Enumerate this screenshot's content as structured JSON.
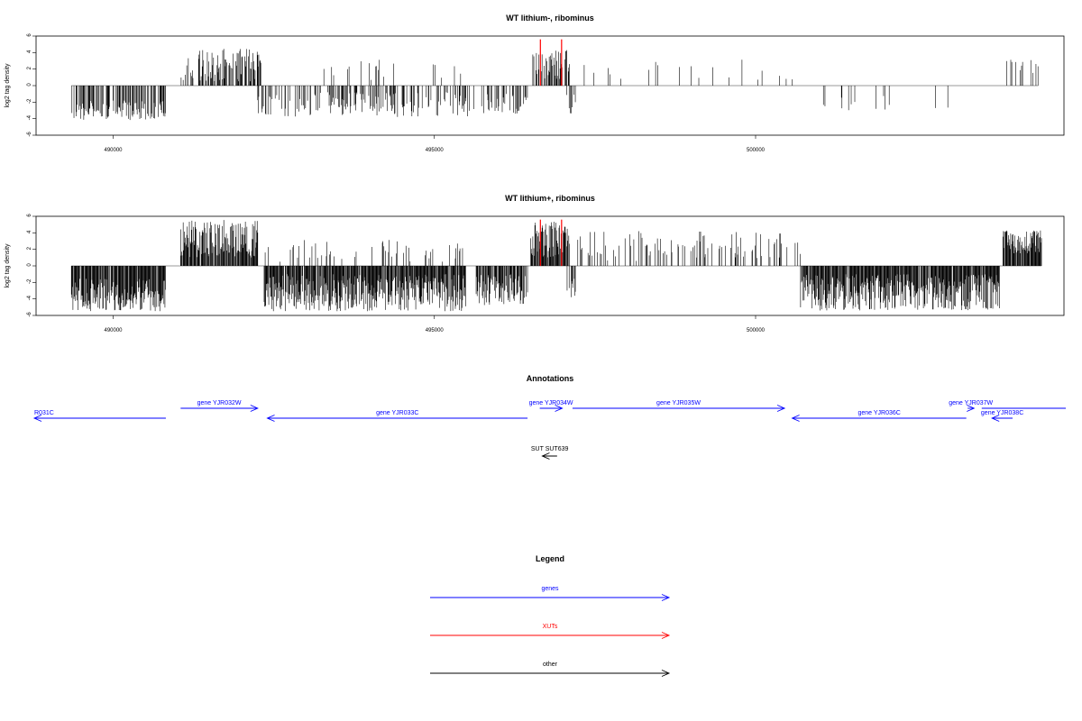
{
  "colors": {
    "genes": "#0000ff",
    "xuts": "#ff0000",
    "other": "#000000",
    "frame": "#000000"
  },
  "chart_data": [
    {
      "type": "bar",
      "title": "WT lithium-, ribominus",
      "ylabel": "log2 tag density",
      "ylim": [
        -6,
        6
      ],
      "yticks": [
        6,
        4,
        2,
        0,
        -2,
        -4,
        -6
      ],
      "xlim": [
        488800,
        504800
      ],
      "xticks": [
        490000,
        495000,
        500000
      ],
      "xtick_labels": [
        "490000",
        "495000",
        "500000"
      ],
      "highlight_positions": [
        496650,
        496980
      ],
      "segments": [
        {
          "start": 489350,
          "end": 490820,
          "sign": -1,
          "min": 1.8,
          "max": 4.2,
          "density": 0.55
        },
        {
          "start": 491050,
          "end": 492300,
          "sign": 1,
          "min": 0.5,
          "max": 4.6,
          "density": 0.5
        },
        {
          "start": 492250,
          "end": 495550,
          "sign": -1,
          "min": 0.8,
          "max": 3.8,
          "density": 0.35
        },
        {
          "start": 492800,
          "end": 495500,
          "sign": 1,
          "min": 0.6,
          "max": 3.3,
          "density": 0.04
        },
        {
          "start": 495600,
          "end": 496450,
          "sign": -1,
          "min": 1.0,
          "max": 3.7,
          "density": 0.3
        },
        {
          "start": 496500,
          "end": 497100,
          "sign": 1,
          "min": 0.8,
          "max": 4.4,
          "density": 0.6
        },
        {
          "start": 497050,
          "end": 497200,
          "sign": -1,
          "min": 0.8,
          "max": 3.5,
          "density": 0.3
        },
        {
          "start": 497300,
          "end": 500700,
          "sign": 1,
          "min": 0.6,
          "max": 3.2,
          "density": 0.04
        },
        {
          "start": 500800,
          "end": 503400,
          "sign": -1,
          "min": 0.5,
          "max": 3.0,
          "density": 0.05
        },
        {
          "start": 503900,
          "end": 504400,
          "sign": 1,
          "min": 1.0,
          "max": 3.3,
          "density": 0.2
        }
      ]
    },
    {
      "type": "bar",
      "title": "WT lithium+, ribominus",
      "ylabel": "log2 tag density",
      "ylim": [
        -6,
        6
      ],
      "yticks": [
        6,
        4,
        2,
        0,
        -2,
        -4,
        -6
      ],
      "xlim": [
        488800,
        504800
      ],
      "xticks": [
        490000,
        495000,
        500000
      ],
      "xtick_labels": [
        "490000",
        "495000",
        "500000"
      ],
      "highlight_positions": [
        496650,
        496980
      ],
      "segments": [
        {
          "start": 489350,
          "end": 490820,
          "sign": -1,
          "min": 1.5,
          "max": 5.5,
          "density": 0.9
        },
        {
          "start": 491050,
          "end": 492250,
          "sign": 1,
          "min": 1.0,
          "max": 5.6,
          "density": 0.9
        },
        {
          "start": 492350,
          "end": 495500,
          "sign": -1,
          "min": 1.0,
          "max": 5.5,
          "density": 0.9
        },
        {
          "start": 492350,
          "end": 495500,
          "sign": 1,
          "min": 0.5,
          "max": 3.2,
          "density": 0.1
        },
        {
          "start": 495650,
          "end": 496450,
          "sign": -1,
          "min": 1.0,
          "max": 4.8,
          "density": 0.8
        },
        {
          "start": 496500,
          "end": 497100,
          "sign": 1,
          "min": 1.0,
          "max": 5.5,
          "density": 0.9
        },
        {
          "start": 497050,
          "end": 497200,
          "sign": -1,
          "min": 0.8,
          "max": 3.8,
          "density": 0.3
        },
        {
          "start": 497200,
          "end": 500700,
          "sign": 1,
          "min": 0.5,
          "max": 4.2,
          "density": 0.2
        },
        {
          "start": 500700,
          "end": 503800,
          "sign": -1,
          "min": 1.0,
          "max": 5.4,
          "density": 0.9
        },
        {
          "start": 503850,
          "end": 504450,
          "sign": 1,
          "min": 1.5,
          "max": 4.3,
          "density": 0.9
        }
      ]
    }
  ],
  "annotations": {
    "title": "Annotations",
    "features": [
      {
        "label": "R031C",
        "start": 488300,
        "end": 490820,
        "strand": "-",
        "kind": "gene",
        "row": 1,
        "label_align": "start"
      },
      {
        "label": "gene YJR032W",
        "start": 491050,
        "end": 492250,
        "strand": "+",
        "kind": "gene",
        "row": 0
      },
      {
        "label": "gene YJR033C",
        "start": 492400,
        "end": 496450,
        "strand": "-",
        "kind": "gene",
        "row": 1
      },
      {
        "label": "gene YJR034W",
        "start": 496640,
        "end": 496990,
        "strand": "+",
        "kind": "gene",
        "row": 0
      },
      {
        "label": "gene YJR035W",
        "start": 497150,
        "end": 500450,
        "strand": "+",
        "kind": "gene",
        "row": 0
      },
      {
        "label": "gene YJR036C",
        "start": 500570,
        "end": 503280,
        "strand": "-",
        "kind": "gene",
        "row": 1
      },
      {
        "label": "gene YJR037W",
        "start": 503300,
        "end": 503400,
        "strand": "+",
        "kind": "gene",
        "row": 0
      },
      {
        "label": "gene YJR038C",
        "start": 503680,
        "end": 504000,
        "strand": "-",
        "kind": "gene",
        "row": 1
      },
      {
        "label": "",
        "start": 503520,
        "end": 504900,
        "strand": "none",
        "kind": "gene",
        "row": 0
      },
      {
        "label": "SUT SUT639",
        "start": 496680,
        "end": 496910,
        "strand": "-",
        "kind": "other",
        "row": 2
      }
    ]
  },
  "legend": {
    "title": "Legend",
    "items": [
      {
        "label": "genes",
        "kind": "genes"
      },
      {
        "label": "XUTs",
        "kind": "xuts"
      },
      {
        "label": "other",
        "kind": "other"
      }
    ]
  }
}
